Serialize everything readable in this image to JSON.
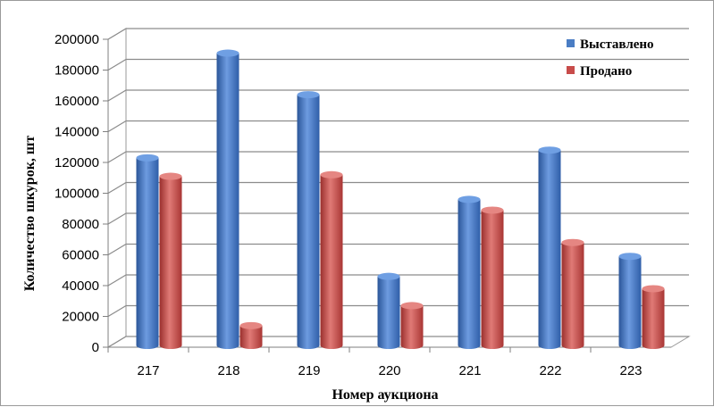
{
  "chart_data": {
    "type": "bar",
    "categories": [
      "217",
      "218",
      "219",
      "220",
      "221",
      "222",
      "223"
    ],
    "series": [
      {
        "name": "Выставлено",
        "color": "#4a7dc4",
        "values": [
          123000,
          191000,
          164000,
          46000,
          96000,
          128000,
          59000
        ]
      },
      {
        "name": "Продано",
        "color": "#c84c4a",
        "values": [
          111000,
          14000,
          112000,
          27000,
          89000,
          68000,
          38000
        ]
      }
    ],
    "xlabel": "Номер аукциона",
    "ylabel": "Количество шкурок, шт",
    "ylim": [
      0,
      200000
    ],
    "yticks": [
      "0",
      "20000",
      "40000",
      "60000",
      "80000",
      "100000",
      "120000",
      "140000",
      "160000",
      "180000",
      "200000"
    ],
    "grid": true,
    "legend_position": "top-right"
  }
}
